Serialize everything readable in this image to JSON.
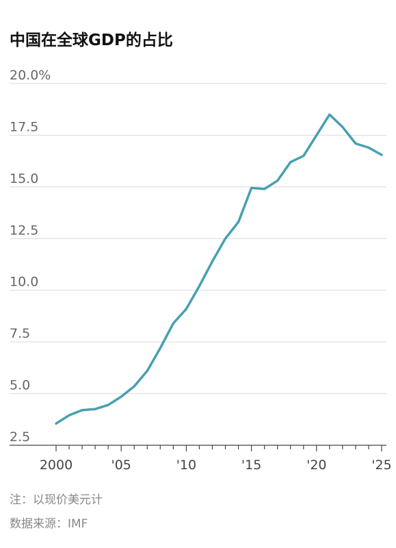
{
  "chart_data": {
    "type": "line",
    "title": "中国在全球GDP的占比",
    "x": [
      2000,
      2001,
      2002,
      2003,
      2004,
      2005,
      2006,
      2007,
      2008,
      2009,
      2010,
      2011,
      2012,
      2013,
      2014,
      2015,
      2016,
      2017,
      2018,
      2019,
      2020,
      2021,
      2022,
      2023,
      2024,
      2025
    ],
    "series": [
      {
        "values": [
          3.55,
          3.95,
          4.2,
          4.25,
          4.45,
          4.85,
          5.35,
          6.1,
          7.2,
          8.4,
          9.1,
          10.2,
          11.4,
          12.5,
          13.3,
          14.95,
          14.9,
          15.3,
          16.2,
          16.5,
          17.5,
          18.5,
          17.9,
          17.1,
          16.9,
          16.55
        ],
        "color": "#479fb1"
      }
    ],
    "yticks": [
      {
        "value": 2.5,
        "label": "2.5"
      },
      {
        "value": 5.0,
        "label": "5.0"
      },
      {
        "value": 7.5,
        "label": "7.5"
      },
      {
        "value": 10.0,
        "label": "10.0"
      },
      {
        "value": 12.5,
        "label": "12.5"
      },
      {
        "value": 15.0,
        "label": "15.0"
      },
      {
        "value": 17.5,
        "label": "17.5"
      },
      {
        "value": 20.0,
        "label": "20.0%"
      }
    ],
    "xticks": [
      {
        "value": 2000,
        "label": "2000"
      },
      {
        "value": 2005,
        "label": "'05"
      },
      {
        "value": 2010,
        "label": "'10"
      },
      {
        "value": 2015,
        "label": "'15"
      },
      {
        "value": 2020,
        "label": "'20"
      },
      {
        "value": 2025,
        "label": "'25"
      }
    ],
    "xlim": [
      2000,
      2025
    ],
    "ylim": [
      2.5,
      20.0
    ],
    "grid": true,
    "notes": [
      "注：以现价美元计",
      "数据来源：IMF"
    ]
  }
}
